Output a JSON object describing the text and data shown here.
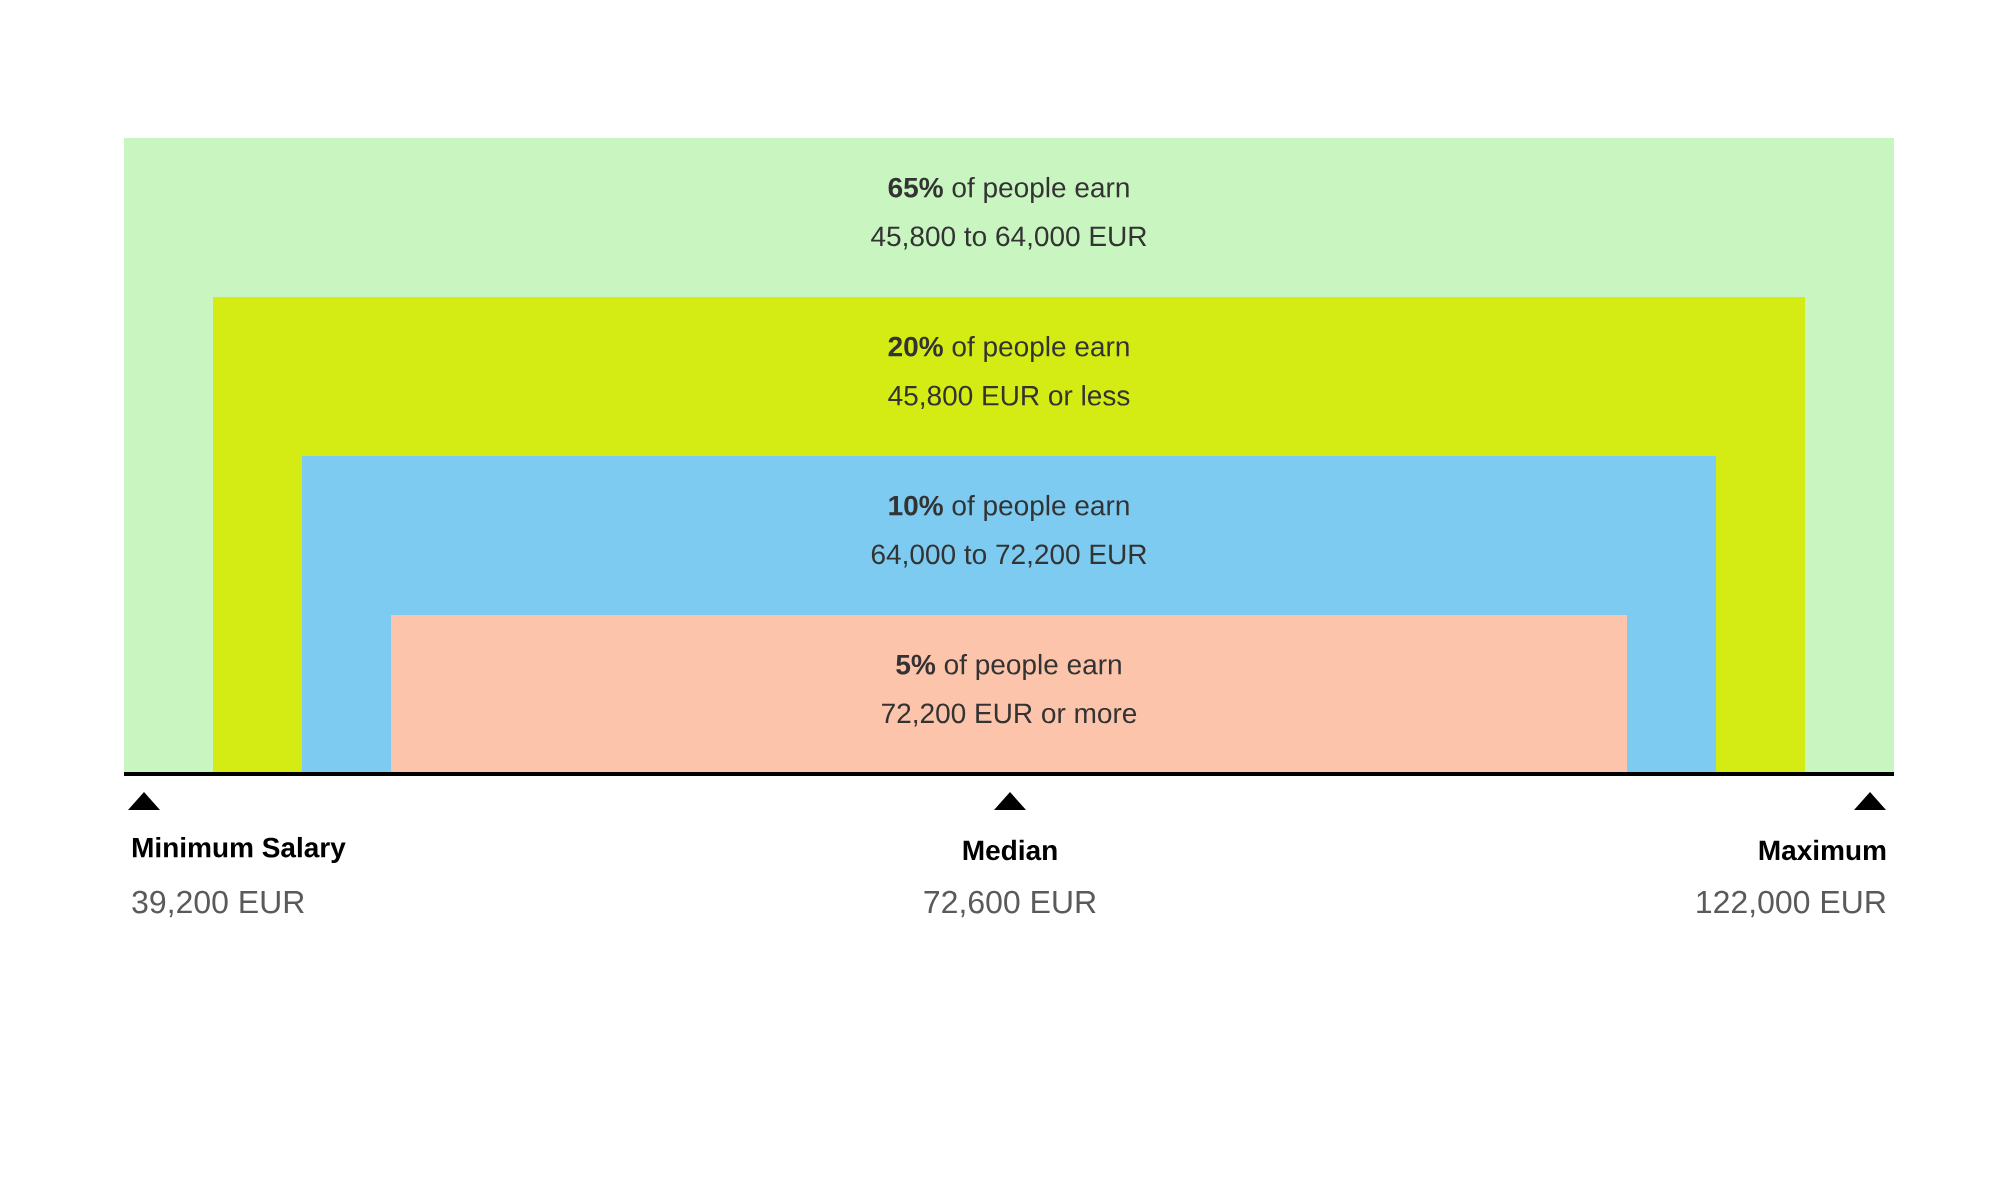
{
  "chart_data": {
    "type": "other",
    "categories": [
      "45,800 to 64,000 EUR",
      "45,800 EUR or less",
      "64,000 to 72,200 EUR",
      "72,200 EUR or more"
    ],
    "values": [
      65,
      20,
      10,
      5
    ],
    "value_labels": [
      "**65%** of people earn",
      "**20%** of people earn",
      "**10%** of people earn",
      "**5%** of people earn"
    ],
    "colors": [
      "#c8f5c0",
      "#d4ec14",
      "#7ecbf2",
      "#fcc4aa"
    ],
    "annotations": [
      "Minimum Salary",
      "39,200 EUR",
      "Median",
      "72,600 EUR",
      "Maximum",
      "122,000 EUR"
    ]
  }
}
